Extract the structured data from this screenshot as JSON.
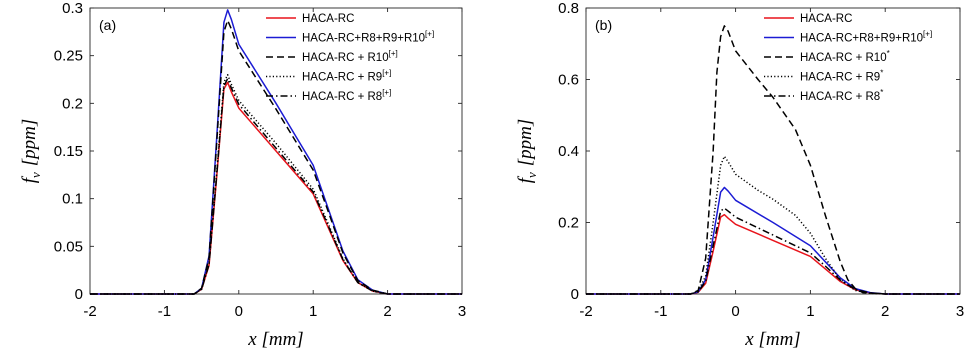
{
  "chart_data": [
    {
      "type": "line",
      "panel_label": "(a)",
      "xlabel_var": "x",
      "xlabel_unit": "[mm]",
      "ylabel_var": "f",
      "ylabel_sub": "v",
      "ylabel_unit": "[ppm]",
      "xlim": [
        -2,
        3
      ],
      "ylim": [
        0,
        0.3
      ],
      "x_ticks": [
        -2,
        -1,
        0,
        1,
        2,
        3
      ],
      "y_ticks": [
        0,
        0.05,
        0.1,
        0.15,
        0.2,
        0.25,
        0.3
      ],
      "grid": false,
      "legend_position": "top-right",
      "series": [
        {
          "name": "HACA-RC",
          "sup": "",
          "color": "#e8141c",
          "dash": "solid",
          "x": [
            -2,
            -0.6,
            -0.5,
            -0.4,
            -0.3,
            -0.2,
            -0.15,
            -0.1,
            0,
            0.5,
            1,
            1.2,
            1.4,
            1.6,
            1.8,
            2,
            3
          ],
          "y": [
            0,
            0,
            0.005,
            0.03,
            0.12,
            0.215,
            0.222,
            0.212,
            0.195,
            0.15,
            0.105,
            0.07,
            0.035,
            0.012,
            0.003,
            0,
            0
          ]
        },
        {
          "name": "HACA-RC+R8+R9+R10",
          "sup": "[+]",
          "color": "#1c1cd4",
          "dash": "solid",
          "x": [
            -2,
            -0.6,
            -0.5,
            -0.4,
            -0.3,
            -0.2,
            -0.15,
            -0.1,
            0,
            0.5,
            1,
            1.2,
            1.4,
            1.6,
            1.8,
            2,
            3
          ],
          "y": [
            0,
            0,
            0.006,
            0.04,
            0.16,
            0.285,
            0.298,
            0.288,
            0.262,
            0.2,
            0.135,
            0.09,
            0.045,
            0.015,
            0.004,
            0,
            0
          ]
        },
        {
          "name": "HACA-RC + R10",
          "sup": "[+]",
          "color": "#000000",
          "dash": "dashed",
          "x": [
            -2,
            -0.6,
            -0.5,
            -0.4,
            -0.3,
            -0.2,
            -0.15,
            -0.1,
            0,
            0.5,
            1,
            1.2,
            1.4,
            1.6,
            1.8,
            2,
            3
          ],
          "y": [
            0,
            0,
            0.006,
            0.038,
            0.155,
            0.275,
            0.287,
            0.278,
            0.255,
            0.194,
            0.13,
            0.087,
            0.043,
            0.014,
            0.004,
            0,
            0
          ]
        },
        {
          "name": "HACA-RC + R9",
          "sup": "[+]",
          "color": "#000000",
          "dash": "dotted",
          "x": [
            -2,
            -0.6,
            -0.5,
            -0.4,
            -0.3,
            -0.2,
            -0.15,
            -0.1,
            0,
            0.5,
            1,
            1.2,
            1.4,
            1.6,
            1.8,
            2,
            3
          ],
          "y": [
            0,
            0,
            0.005,
            0.032,
            0.125,
            0.222,
            0.23,
            0.22,
            0.203,
            0.158,
            0.11,
            0.074,
            0.037,
            0.012,
            0.003,
            0,
            0
          ]
        },
        {
          "name": "HACA-RC + R8",
          "sup": "[+]",
          "color": "#000000",
          "dash": "dashdot",
          "x": [
            -2,
            -0.6,
            -0.5,
            -0.4,
            -0.3,
            -0.2,
            -0.15,
            -0.1,
            0,
            0.5,
            1,
            1.2,
            1.4,
            1.6,
            1.8,
            2,
            3
          ],
          "y": [
            0,
            0,
            0.005,
            0.031,
            0.122,
            0.218,
            0.226,
            0.216,
            0.199,
            0.153,
            0.107,
            0.072,
            0.036,
            0.012,
            0.003,
            0,
            0
          ]
        }
      ]
    },
    {
      "type": "line",
      "panel_label": "(b)",
      "xlabel_var": "x",
      "xlabel_unit": "[mm]",
      "ylabel_var": "f",
      "ylabel_sub": "v",
      "ylabel_unit": "[ppm]",
      "xlim": [
        -2,
        3
      ],
      "ylim": [
        0,
        0.8
      ],
      "x_ticks": [
        -2,
        -1,
        0,
        1,
        2,
        3
      ],
      "y_ticks": [
        0,
        0.2,
        0.4,
        0.6,
        0.8
      ],
      "grid": false,
      "legend_position": "top-right",
      "series": [
        {
          "name": "HACA-RC",
          "sup": "",
          "color": "#e8141c",
          "dash": "solid",
          "x": [
            -2,
            -0.6,
            -0.5,
            -0.4,
            -0.3,
            -0.2,
            -0.15,
            -0.1,
            0,
            0.5,
            1,
            1.2,
            1.4,
            1.6,
            1.8,
            2,
            3
          ],
          "y": [
            0,
            0,
            0.005,
            0.03,
            0.12,
            0.215,
            0.222,
            0.212,
            0.195,
            0.15,
            0.105,
            0.07,
            0.035,
            0.012,
            0.003,
            0,
            0
          ]
        },
        {
          "name": "HACA-RC+R8+R9+R10",
          "sup": "[+]",
          "color": "#1c1cd4",
          "dash": "solid",
          "x": [
            -2,
            -0.6,
            -0.5,
            -0.4,
            -0.3,
            -0.2,
            -0.15,
            -0.1,
            0,
            0.5,
            1,
            1.2,
            1.4,
            1.6,
            1.8,
            2,
            3
          ],
          "y": [
            0,
            0,
            0.006,
            0.04,
            0.16,
            0.285,
            0.298,
            0.288,
            0.262,
            0.2,
            0.135,
            0.09,
            0.045,
            0.015,
            0.004,
            0,
            0
          ]
        },
        {
          "name": "HACA-RC + R10",
          "sup": "*",
          "color": "#000000",
          "dash": "dashed",
          "x": [
            -2,
            -0.6,
            -0.5,
            -0.4,
            -0.3,
            -0.25,
            -0.2,
            -0.15,
            -0.1,
            0,
            0.3,
            0.5,
            0.8,
            1.0,
            1.2,
            1.4,
            1.5,
            1.6,
            1.7,
            2,
            3
          ],
          "y": [
            0,
            0,
            0.01,
            0.1,
            0.4,
            0.62,
            0.72,
            0.75,
            0.735,
            0.68,
            0.6,
            0.55,
            0.46,
            0.36,
            0.22,
            0.09,
            0.04,
            0.015,
            0.004,
            0,
            0
          ]
        },
        {
          "name": "HACA-RC + R9",
          "sup": "*",
          "color": "#000000",
          "dash": "dotted",
          "x": [
            -2,
            -0.6,
            -0.5,
            -0.4,
            -0.3,
            -0.2,
            -0.15,
            -0.1,
            0,
            0.3,
            0.5,
            0.8,
            1.0,
            1.2,
            1.4,
            1.6,
            1.8,
            2,
            3
          ],
          "y": [
            0,
            0,
            0.008,
            0.05,
            0.2,
            0.36,
            0.385,
            0.37,
            0.335,
            0.29,
            0.265,
            0.22,
            0.17,
            0.1,
            0.04,
            0.01,
            0.002,
            0,
            0
          ]
        },
        {
          "name": "HACA-RC + R8",
          "sup": "*",
          "color": "#000000",
          "dash": "dashdot",
          "x": [
            -2,
            -0.6,
            -0.5,
            -0.4,
            -0.3,
            -0.2,
            -0.15,
            -0.1,
            0,
            0.5,
            1,
            1.2,
            1.4,
            1.6,
            1.8,
            2,
            3
          ],
          "y": [
            0,
            0,
            0.006,
            0.035,
            0.135,
            0.232,
            0.24,
            0.232,
            0.215,
            0.165,
            0.115,
            0.078,
            0.039,
            0.013,
            0.003,
            0,
            0
          ]
        }
      ]
    }
  ]
}
